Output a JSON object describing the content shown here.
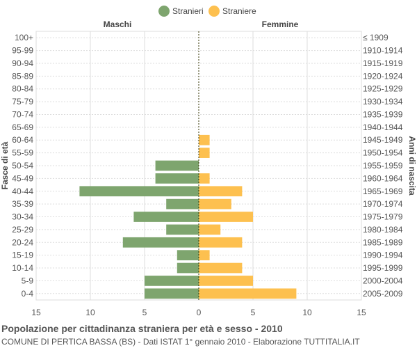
{
  "chart_data": {
    "type": "bar",
    "orientation": "horizontal",
    "legend": [
      {
        "name": "Stranieri",
        "color": "#7ea56e"
      },
      {
        "name": "Straniere",
        "color": "#fdc04f"
      }
    ],
    "left_side_label": "Maschi",
    "right_side_label": "Femmine",
    "ylabel_left": "Fasce di età",
    "ylabel_right": "Anni di nascita",
    "age_groups": [
      "100+",
      "95-99",
      "90-94",
      "85-89",
      "80-84",
      "75-79",
      "70-74",
      "65-69",
      "60-64",
      "55-59",
      "50-54",
      "45-49",
      "40-44",
      "35-39",
      "30-34",
      "25-29",
      "20-24",
      "15-19",
      "10-14",
      "5-9",
      "0-4"
    ],
    "birth_years": [
      "≤ 1909",
      "1910-1914",
      "1915-1919",
      "1920-1924",
      "1925-1929",
      "1930-1934",
      "1935-1939",
      "1940-1944",
      "1945-1949",
      "1950-1954",
      "1955-1959",
      "1960-1964",
      "1965-1969",
      "1970-1974",
      "1975-1979",
      "1980-1984",
      "1985-1989",
      "1990-1994",
      "1995-1999",
      "2000-2004",
      "2005-2009"
    ],
    "series": [
      {
        "name": "Stranieri",
        "values": [
          0,
          0,
          0,
          0,
          0,
          0,
          0,
          0,
          0,
          0,
          4,
          4,
          11,
          3,
          6,
          3,
          7,
          2,
          2,
          5,
          5
        ]
      },
      {
        "name": "Straniere",
        "values": [
          0,
          0,
          0,
          0,
          0,
          0,
          0,
          0,
          1,
          1,
          0,
          1,
          4,
          3,
          5,
          2,
          4,
          1,
          4,
          5,
          9
        ]
      }
    ],
    "xlim": [
      -15,
      15
    ],
    "xticks": [
      15,
      10,
      5,
      0,
      5,
      10,
      15
    ],
    "grid": true
  },
  "footer": {
    "title": "Popolazione per cittadinanza straniera per età e sesso - 2010",
    "subtitle": "COMUNE DI PERTICA BASSA (BS) - Dati ISTAT 1° gennaio 2010 - Elaborazione TUTTITALIA.IT"
  }
}
